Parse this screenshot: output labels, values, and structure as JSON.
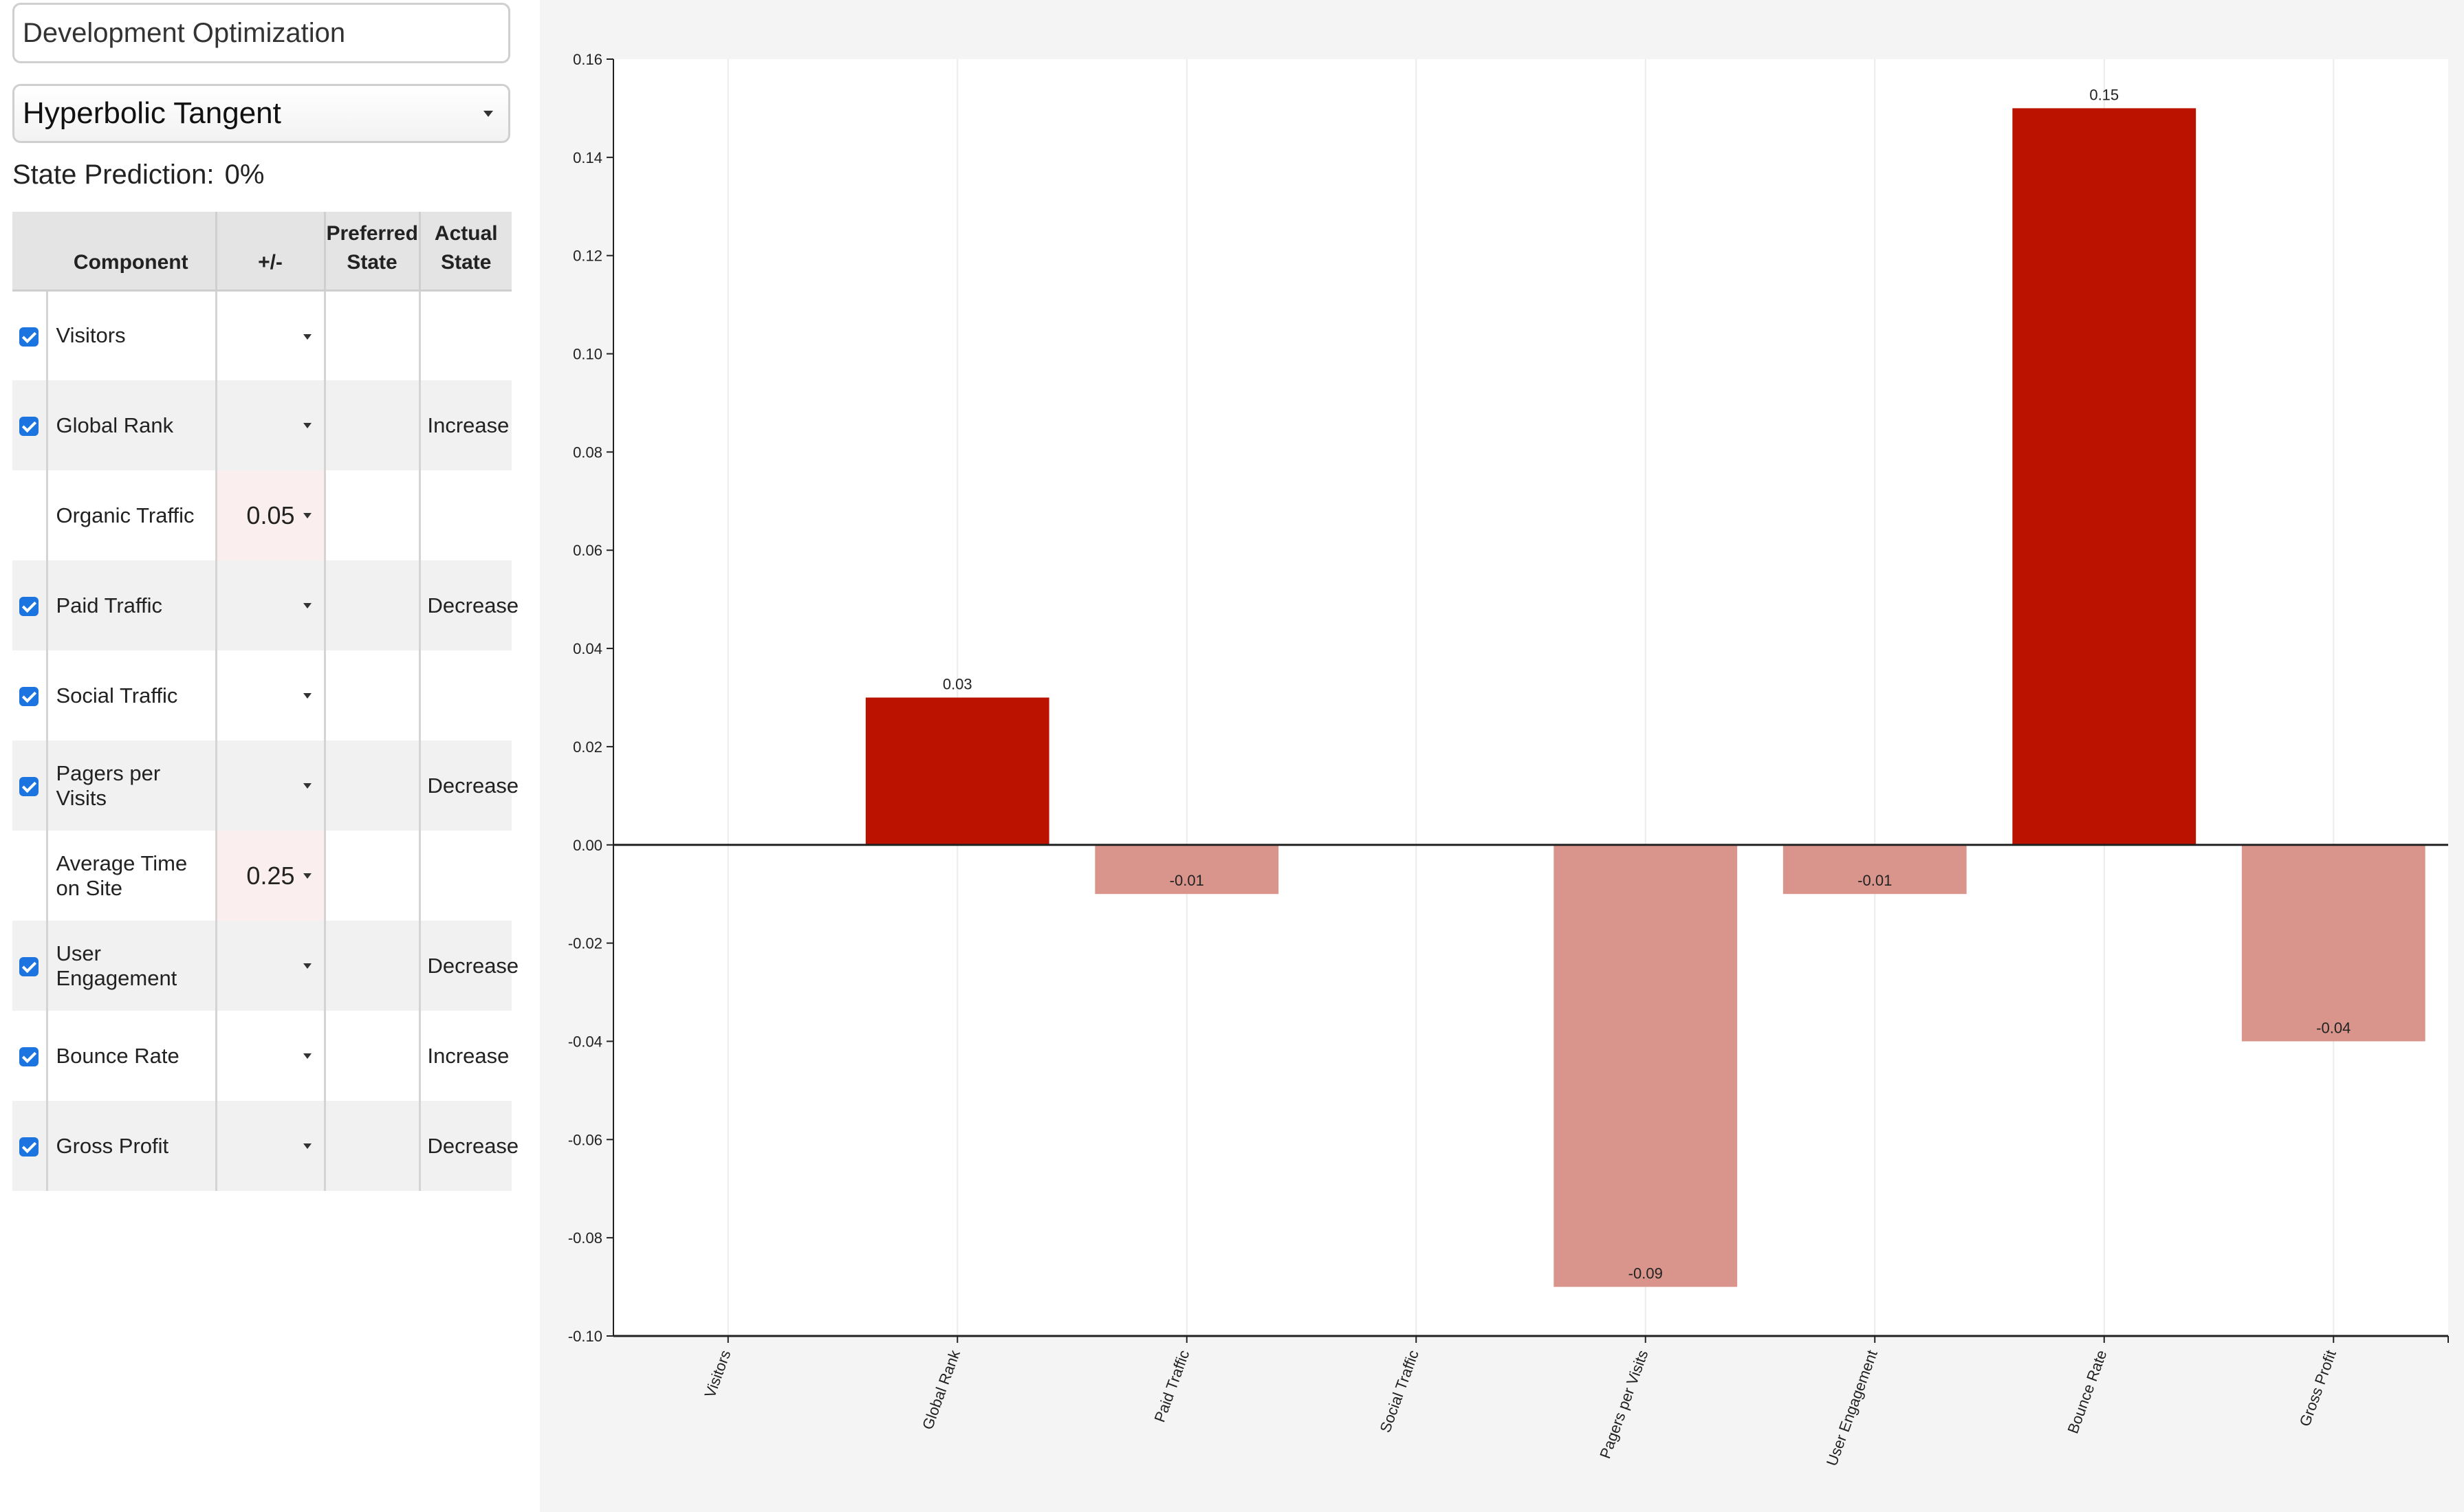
{
  "title_field": "Development Optimization",
  "activation_select": "Hyperbolic Tangent",
  "state_prediction": {
    "label": "State Prediction:",
    "value": "0%"
  },
  "table": {
    "headers": [
      "",
      "Component",
      "+/-",
      "Preferred State",
      "Actual State"
    ],
    "rows": [
      {
        "checked": true,
        "component": "Visitors",
        "value": "",
        "preferred": "",
        "actual": ""
      },
      {
        "checked": true,
        "component": "Global Rank",
        "value": "",
        "preferred": "",
        "actual": "Increase"
      },
      {
        "checked": false,
        "component": "Organic Traffic",
        "value": "0.05",
        "preferred": "",
        "actual": ""
      },
      {
        "checked": true,
        "component": "Paid Traffic",
        "value": "",
        "preferred": "",
        "actual": "Decrease"
      },
      {
        "checked": true,
        "component": "Social Traffic",
        "value": "",
        "preferred": "",
        "actual": ""
      },
      {
        "checked": true,
        "component": "Pagers per Visits",
        "value": "",
        "preferred": "",
        "actual": "Decrease"
      },
      {
        "checked": false,
        "component": "Average Time on Site",
        "value": "0.25",
        "preferred": "",
        "actual": ""
      },
      {
        "checked": true,
        "component": "User Engagement",
        "value": "",
        "preferred": "",
        "actual": "Decrease"
      },
      {
        "checked": true,
        "component": "Bounce Rate",
        "value": "",
        "preferred": "",
        "actual": "Increase"
      },
      {
        "checked": true,
        "component": "Gross Profit",
        "value": "",
        "preferred": "",
        "actual": "Decrease"
      }
    ]
  },
  "colors": {
    "positive": "#bb1200",
    "negative": "#d9958c",
    "accent": "#1c74e0"
  },
  "chart_data": {
    "type": "bar",
    "categories": [
      "Visitors",
      "Global Rank",
      "Paid Traffic",
      "Social Traffic",
      "Pagers per Visits",
      "User Engagement",
      "Bounce Rate",
      "Gross Profit"
    ],
    "values": [
      0,
      0.03,
      -0.01,
      0,
      -0.09,
      -0.01,
      0.15,
      -0.04
    ],
    "data_labels": [
      "",
      "0.03",
      "-0.01",
      "",
      "-0.09",
      "-0.01",
      "0.15",
      "-0.04"
    ],
    "ylim": [
      -0.1,
      0.16
    ],
    "yticks": [
      "0.16",
      "0.14",
      "0.12",
      "0.10",
      "0.08",
      "0.06",
      "0.04",
      "0.02",
      "0.00",
      "-0.02",
      "-0.04",
      "-0.06",
      "-0.08",
      "-0.10"
    ],
    "title": "",
    "xlabel": "",
    "ylabel": "",
    "grid": "vertical"
  }
}
